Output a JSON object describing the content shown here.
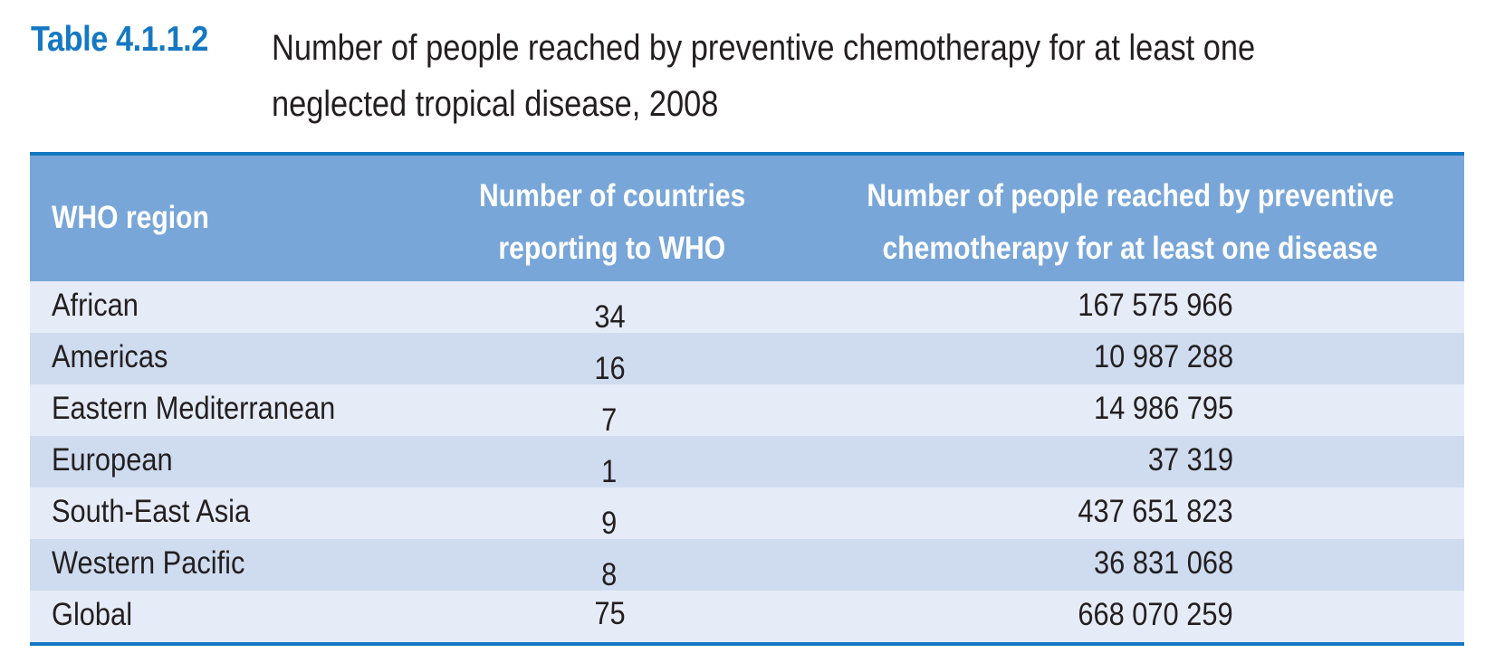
{
  "caption": {
    "label": "Table 4.1.1.2",
    "title_line1": "Number of people reached by preventive chemotherapy for at least one",
    "title_line2": "neglected tropical disease, 2008"
  },
  "table": {
    "headers": {
      "region": "WHO region",
      "countries_line1": "Number of countries",
      "countries_line2": "reporting to WHO",
      "people_line1": "Number of people reached by preventive",
      "people_line2": "chemotherapy for at least one disease"
    },
    "rows": [
      {
        "region": "African",
        "countries": "34",
        "people": "167 575 966"
      },
      {
        "region": "Americas",
        "countries": "16",
        "people": "10 987 288"
      },
      {
        "region": "Eastern Mediterranean",
        "countries": "7",
        "people": "14 986 795"
      },
      {
        "region": "European",
        "countries": "1",
        "people": "37 319"
      },
      {
        "region": "South-East Asia",
        "countries": "9",
        "people": "437 651 823"
      },
      {
        "region": "Western Pacific",
        "countries": "8",
        "people": "36 831 068"
      },
      {
        "region": "Global",
        "countries": "75",
        "people": "668 070 259"
      }
    ]
  },
  "colors": {
    "label": "#1478c2",
    "rule": "#1478c2",
    "header_bg": "#78a6d8",
    "row_light": "#e5ecf7",
    "row_dark": "#cfdcf0",
    "text": "#231f20"
  }
}
